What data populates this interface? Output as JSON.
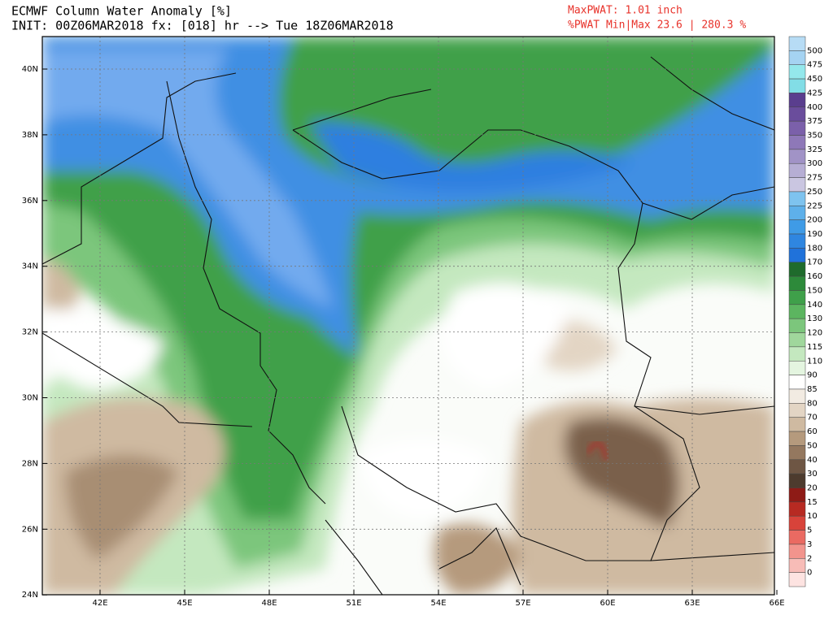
{
  "header": {
    "title": "ECMWF Column Water Anomaly [%]",
    "init": "INIT: 00Z06MAR2018 fx: [018] hr --> Tue 18Z06MAR2018",
    "max_pwat": "MaxPWAT: 1.01 inch",
    "minmax": "%PWAT Min|Max 23.6 | 280.3 %"
  },
  "map": {
    "lat_labels": [
      "40N",
      "38N",
      "36N",
      "34N",
      "32N",
      "30N",
      "28N",
      "26N",
      "24N"
    ],
    "lon_labels": [
      "42E",
      "45E",
      "48E",
      "51E",
      "54E",
      "57E",
      "60E",
      "63E",
      "66E"
    ]
  },
  "colorbar": {
    "labels": [
      500,
      475,
      450,
      425,
      400,
      375,
      350,
      325,
      300,
      275,
      250,
      225,
      200,
      190,
      180,
      170,
      160,
      150,
      140,
      130,
      120,
      115,
      110,
      90,
      85,
      80,
      70,
      60,
      50,
      40,
      30,
      20,
      15,
      10,
      5,
      3,
      2,
      0
    ],
    "colors": [
      "#b7dcf5",
      "#a5d3f2",
      "#94e8ec",
      "#82dde6",
      "#5a3e8e",
      "#6a4d9c",
      "#7b60aa",
      "#8e78b8",
      "#a193c6",
      "#b6aed4",
      "#cac6e1",
      "#7ec3ef",
      "#5eb0ea",
      "#3f9be6",
      "#2f86e0",
      "#2072da",
      "#1f6b2c",
      "#2d8a3a",
      "#3fa04a",
      "#5cb560",
      "#7cc67c",
      "#a0d79c",
      "#c4e8bf",
      "#e4f5e0",
      "#ffffff",
      "#f2ebe2",
      "#e3d5c4",
      "#cfbaa1",
      "#b59a7d",
      "#94785f",
      "#6e5644",
      "#4d3b2e",
      "#8e1b16",
      "#b72a22",
      "#d8433a",
      "#ea6a62",
      "#f2948d",
      "#f7bcb7",
      "#fde3e1"
    ]
  }
}
